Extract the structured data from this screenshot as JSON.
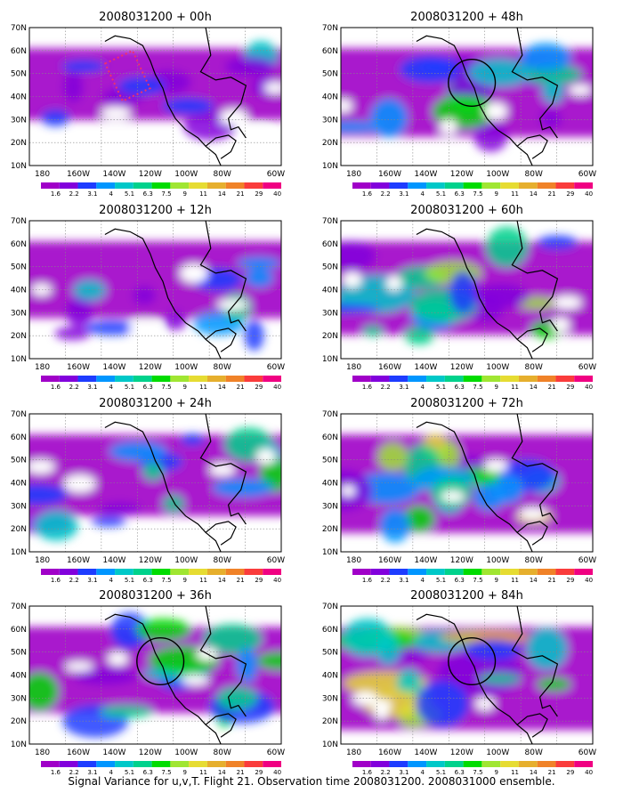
{
  "chart_data": {
    "type": "heatmap",
    "caption": "Signal Variance for u,v,T. Flight 21. Observation time 2008031200. 2008031000 ensemble.",
    "colorbar": {
      "levels": [
        "1.6",
        "2.2",
        "3.1",
        "4",
        "5.1",
        "6.3",
        "7.5",
        "9",
        "11",
        "14",
        "21",
        "29",
        "40"
      ],
      "colors": [
        "#a000c8",
        "#8200dc",
        "#1e3cff",
        "#0096ff",
        "#00c8c8",
        "#00d28c",
        "#00dc00",
        "#a0e632",
        "#e6dc32",
        "#e6af2d",
        "#f08228",
        "#fa3c3c",
        "#f00082"
      ]
    },
    "x_ticks": [
      "180",
      "160W",
      "140W",
      "120W",
      "100W",
      "80W",
      "60W"
    ],
    "y_ticks": [
      "10N",
      "20N",
      "30N",
      "40N",
      "50N",
      "60N",
      "70N"
    ],
    "panels": [
      {
        "title": "2008031200 + 00h",
        "intensity": 0.2,
        "circle": false,
        "box": true
      },
      {
        "title": "2008031200 + 48h",
        "intensity": 0.55,
        "circle": true,
        "box": false
      },
      {
        "title": "2008031200 + 12h",
        "intensity": 0.3,
        "circle": false,
        "box": false
      },
      {
        "title": "2008031200 + 60h",
        "intensity": 0.65,
        "circle": false,
        "box": false
      },
      {
        "title": "2008031200 + 24h",
        "intensity": 0.4,
        "circle": false,
        "box": false
      },
      {
        "title": "2008031200 + 72h",
        "intensity": 0.75,
        "circle": false,
        "box": false
      },
      {
        "title": "2008031200 + 36h",
        "intensity": 0.5,
        "circle": true,
        "box": false
      },
      {
        "title": "2008031200 + 84h",
        "intensity": 0.85,
        "circle": true,
        "box": false
      }
    ]
  }
}
